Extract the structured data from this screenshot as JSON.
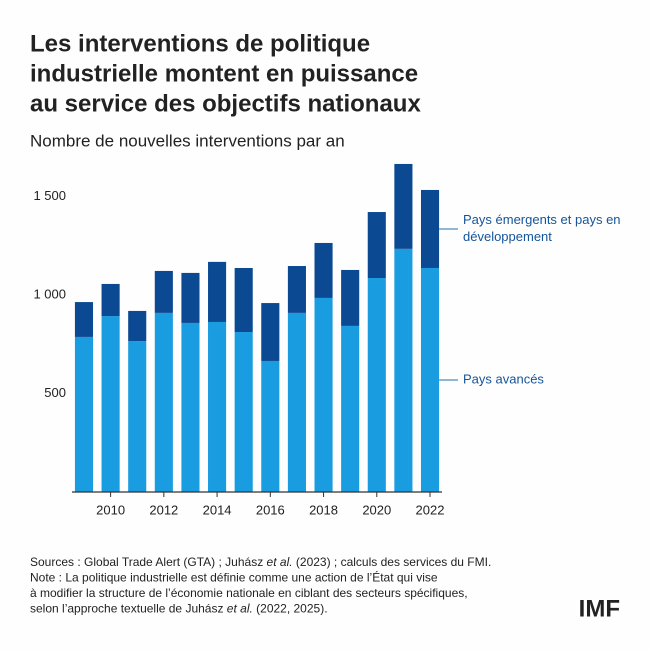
{
  "chart_data": {
    "type": "stacked_bar",
    "title": [
      "Les interventions de politique",
      "industrielle montent en puissance",
      "au service des objectifs nationaux"
    ],
    "subtitle": "Nombre de nouvelles interventions par an",
    "x": [
      2009,
      2010,
      2011,
      2012,
      2013,
      2014,
      2015,
      2016,
      2017,
      2018,
      2019,
      2020,
      2021,
      2022
    ],
    "series": [
      {
        "name": "Pays avancés",
        "color": "#1a9de0",
        "values": [
          787,
          893,
          766,
          909,
          858,
          863,
          812,
          665,
          909,
          985,
          843,
          1086,
          1234,
          1137
        ]
      },
      {
        "name": "Pays émergents et pays en développement",
        "color": "#0b4a93",
        "values": [
          177,
          163,
          153,
          213,
          254,
          305,
          325,
          294,
          238,
          279,
          284,
          335,
          431,
          396
        ]
      }
    ],
    "xlim": [
      2008.55,
      2022.45
    ],
    "xticks": [
      2010,
      2012,
      2014,
      2016,
      2018,
      2020,
      2022
    ],
    "ylim": [
      0,
      1680
    ],
    "yticks": [
      {
        "value": 500,
        "label": "500"
      },
      {
        "value": 1000,
        "label": "1 000"
      },
      {
        "value": 1500,
        "label": "1 500"
      }
    ],
    "grid": false,
    "legend": "right",
    "notes": [
      [
        "Sources : Global Trade Alert (GTA) ; Juhász ",
        "et al.",
        " (2023) ; calculs des services du FMI."
      ],
      [
        "Note : La politique industrielle est définie comme une action de l’État qui vise"
      ],
      [
        "à modifier la structure de l’économie nationale en ciblant des secteurs spécifiques,"
      ],
      [
        "selon l’approche textuelle de Juhász ",
        "et al.",
        " (2022, 2025)."
      ]
    ],
    "logo": "IMF"
  }
}
